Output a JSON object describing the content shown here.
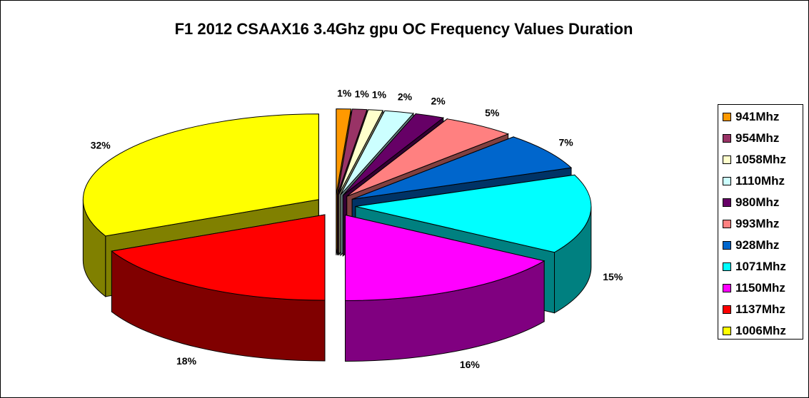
{
  "chart_data": {
    "type": "pie",
    "title": "F1 2012 CSAAX16 3.4Ghz gpu OC Frequency Values Duration",
    "slices": [
      {
        "name": "941Mhz",
        "value": 1,
        "label": "1%",
        "color": "#FF9900"
      },
      {
        "name": "954Mhz",
        "value": 1,
        "label": "1%",
        "color": "#993366"
      },
      {
        "name": "1058Mhz",
        "value": 1,
        "label": "1%",
        "color": "#FFFFCC"
      },
      {
        "name": "1110Mhz",
        "value": 2,
        "label": "2%",
        "color": "#CCFFFF"
      },
      {
        "name": "980Mhz",
        "value": 2,
        "label": "2%",
        "color": "#660066"
      },
      {
        "name": "993Mhz",
        "value": 5,
        "label": "5%",
        "color": "#FF8080"
      },
      {
        "name": "928Mhz",
        "value": 7,
        "label": "7%",
        "color": "#0066CC"
      },
      {
        "name": "1071Mhz",
        "value": 15,
        "label": "15%",
        "color": "#00FFFF"
      },
      {
        "name": "1150Mhz",
        "value": 16,
        "label": "16%",
        "color": "#FF00FF"
      },
      {
        "name": "1137Mhz",
        "value": 18,
        "label": "18%",
        "color": "#FF0000"
      },
      {
        "name": "1006Mhz",
        "value": 32,
        "label": "32%",
        "color": "#FFFF00"
      }
    ],
    "legend": {
      "position": "right",
      "entries": [
        "941Mhz",
        "954Mhz",
        "1058Mhz",
        "1110Mhz",
        "980Mhz",
        "993Mhz",
        "928Mhz",
        "1071Mhz",
        "1150Mhz",
        "1137Mhz",
        "1006Mhz"
      ]
    },
    "style": "3d exploded pie"
  }
}
